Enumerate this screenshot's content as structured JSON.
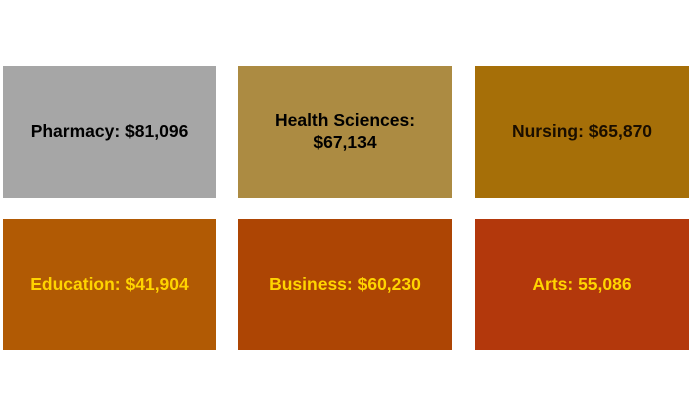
{
  "canvas": {
    "background": "#FFFFFF"
  },
  "tiles": [
    {
      "name": "Pharmacy",
      "label": "Pharmacy: $81,096",
      "value": 81096,
      "bg": "#A6A6A6",
      "text_color": "#000000"
    },
    {
      "name": "Health Sciences",
      "label": "Health Sciences: $67,134",
      "value": 67134,
      "bg": "#AC8B42",
      "text_color": "#000000"
    },
    {
      "name": "Nursing",
      "label": "Nursing: $65,870",
      "value": 65870,
      "bg": "#A66F08",
      "text_color": "#1A0E00"
    },
    {
      "name": "Education",
      "label": "Education: $41,904",
      "value": 41904,
      "bg": "#B15A04",
      "text_color": "#FFD400"
    },
    {
      "name": "Business",
      "label": "Business: $60,230",
      "value": 60230,
      "bg": "#AD4504",
      "text_color": "#FFD400"
    },
    {
      "name": "Arts",
      "label": "Arts: 55,086",
      "value": 55086,
      "bg": "#B3380C",
      "text_color": "#FFD400"
    }
  ],
  "chart_data": {
    "type": "table",
    "title": "",
    "layout": "2x3 grid of equally sized colored tiles on white background",
    "categories": [
      "Pharmacy",
      "Health Sciences",
      "Nursing",
      "Education",
      "Business",
      "Arts"
    ],
    "values": [
      81096,
      67134,
      65870,
      41904,
      60230,
      55086
    ],
    "labels": [
      "Pharmacy: $81,096",
      "Health Sciences: $67,134",
      "Nursing: $65,870",
      "Education: $41,904",
      "Business: $60,230",
      "Arts: 55,086"
    ],
    "tile_colors": [
      "#A6A6A6",
      "#AC8B42",
      "#A66F08",
      "#B15A04",
      "#AD4504",
      "#B3380C"
    ],
    "label_colors": [
      "#000000",
      "#000000",
      "#1A0E00",
      "#FFD400",
      "#FFD400",
      "#FFD400"
    ]
  }
}
